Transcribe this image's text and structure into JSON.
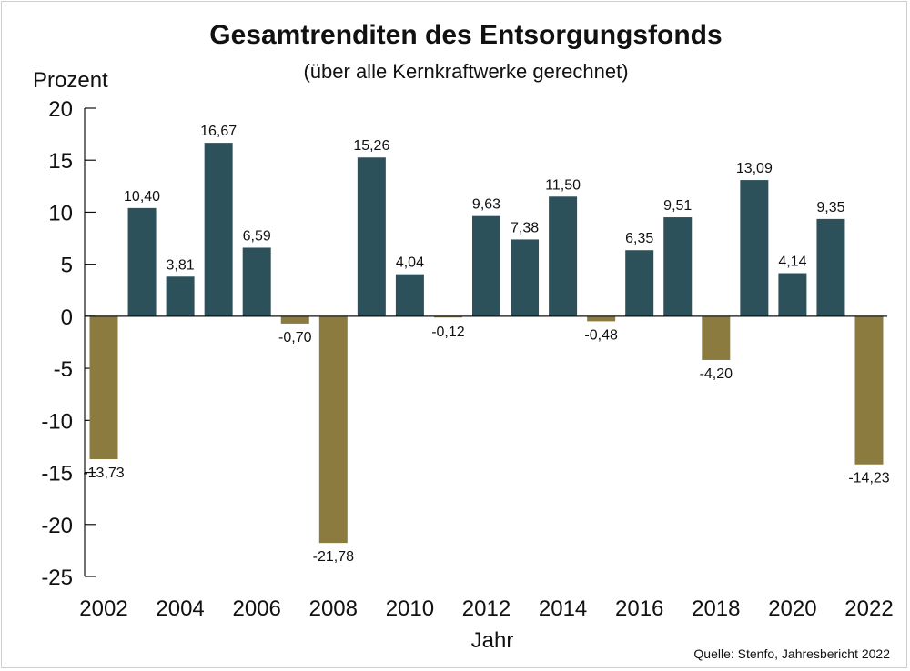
{
  "chart_data": {
    "type": "bar",
    "title": "Gesamtrenditen des Entsorgungsfonds",
    "subtitle": "(über alle Kernkraftwerke gerechnet)",
    "ylabel": "Prozent",
    "xlabel": "Jahr",
    "source": "Quelle: Stenfo, Jahresbericht 2022",
    "ylim": [
      -25,
      20
    ],
    "y_ticks": [
      20,
      15,
      10,
      5,
      0,
      -5,
      -10,
      -15,
      -20,
      -25
    ],
    "x_tick_labels": [
      "2002",
      "2004",
      "2006",
      "2008",
      "2010",
      "2012",
      "2014",
      "2016",
      "2018",
      "2020",
      "2022"
    ],
    "categories": [
      "2002",
      "2003",
      "2004",
      "2005",
      "2006",
      "2007",
      "2008",
      "2009",
      "2010",
      "2011",
      "2012",
      "2013",
      "2014",
      "2015",
      "2016",
      "2017",
      "2018",
      "2019",
      "2020",
      "2021",
      "2022"
    ],
    "values": [
      -13.73,
      10.4,
      3.81,
      16.67,
      6.59,
      -0.7,
      -21.78,
      15.26,
      4.04,
      -0.12,
      9.63,
      7.38,
      11.5,
      -0.48,
      6.35,
      9.51,
      -4.2,
      13.09,
      4.14,
      9.35,
      -14.23
    ],
    "data_labels": [
      "-13,73",
      "10,40",
      "3,81",
      "16,67",
      "6,59",
      "-0,70",
      "-21,78",
      "15,26",
      "4,04",
      "-0,12",
      "9,63",
      "7,38",
      "11,50",
      "-0,48",
      "6,35",
      "9,51",
      "-4,20",
      "13,09",
      "4,14",
      "9,35",
      "-14,23"
    ],
    "colors": {
      "positive": "#2c515a",
      "negative": "#8c7b3e",
      "axis": "#111111"
    }
  }
}
